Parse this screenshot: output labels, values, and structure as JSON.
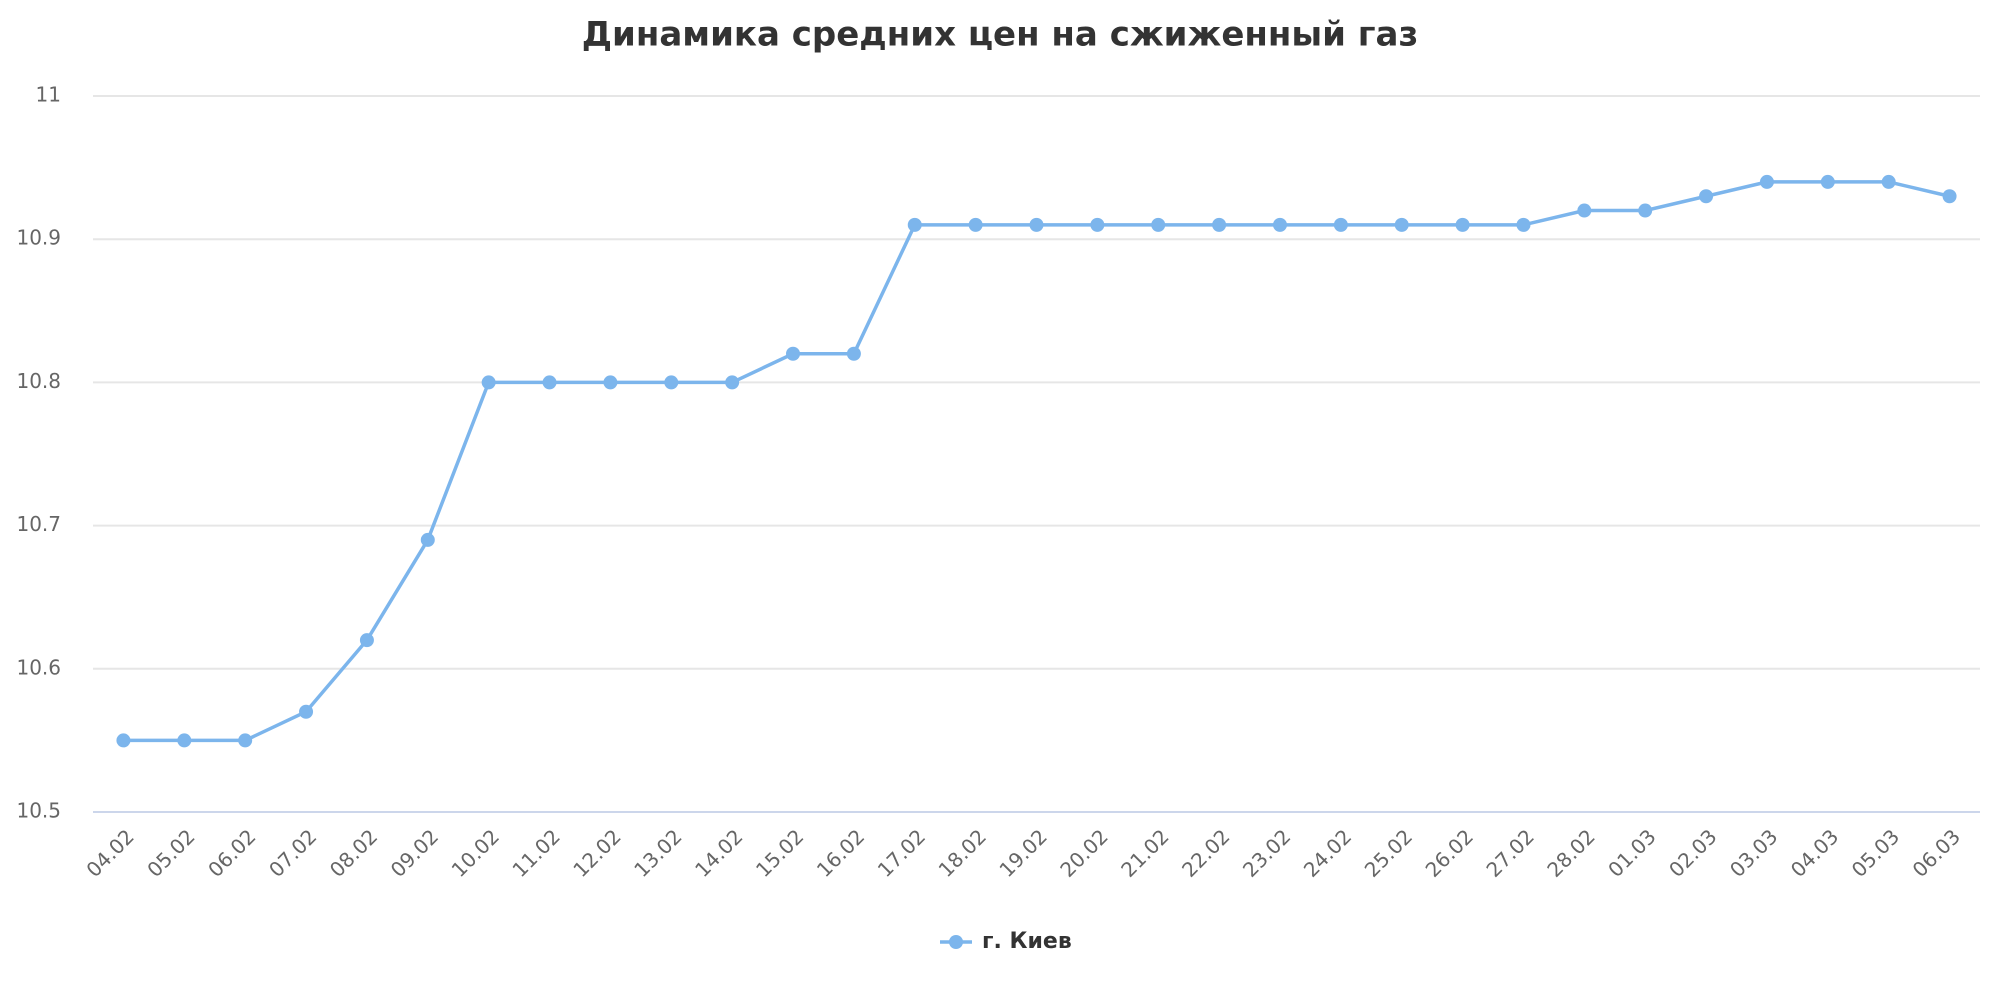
{
  "chart_data": {
    "type": "line",
    "title": "Динамика средних цен на сжиженный газ",
    "categories": [
      "04.02",
      "05.02",
      "06.02",
      "07.02",
      "08.02",
      "09.02",
      "10.02",
      "11.02",
      "12.02",
      "13.02",
      "14.02",
      "15.02",
      "16.02",
      "17.02",
      "18.02",
      "19.02",
      "20.02",
      "21.02",
      "22.02",
      "23.02",
      "24.02",
      "25.02",
      "26.02",
      "27.02",
      "28.02",
      "01.03",
      "02.03",
      "03.03",
      "04.03",
      "05.03",
      "06.03"
    ],
    "series": [
      {
        "name": "г. Киев",
        "color": "#7cb5ec",
        "values": [
          10.55,
          10.55,
          10.55,
          10.57,
          10.62,
          10.69,
          10.8,
          10.8,
          10.8,
          10.8,
          10.8,
          10.82,
          10.82,
          10.91,
          10.91,
          10.91,
          10.91,
          10.91,
          10.91,
          10.91,
          10.91,
          10.91,
          10.91,
          10.91,
          10.92,
          10.92,
          10.93,
          10.94,
          10.94,
          10.94,
          10.93
        ]
      }
    ],
    "ylim": [
      10.5,
      11
    ],
    "yticks": [
      10.5,
      10.6,
      10.7,
      10.8,
      10.9,
      11
    ],
    "grid": true
  }
}
